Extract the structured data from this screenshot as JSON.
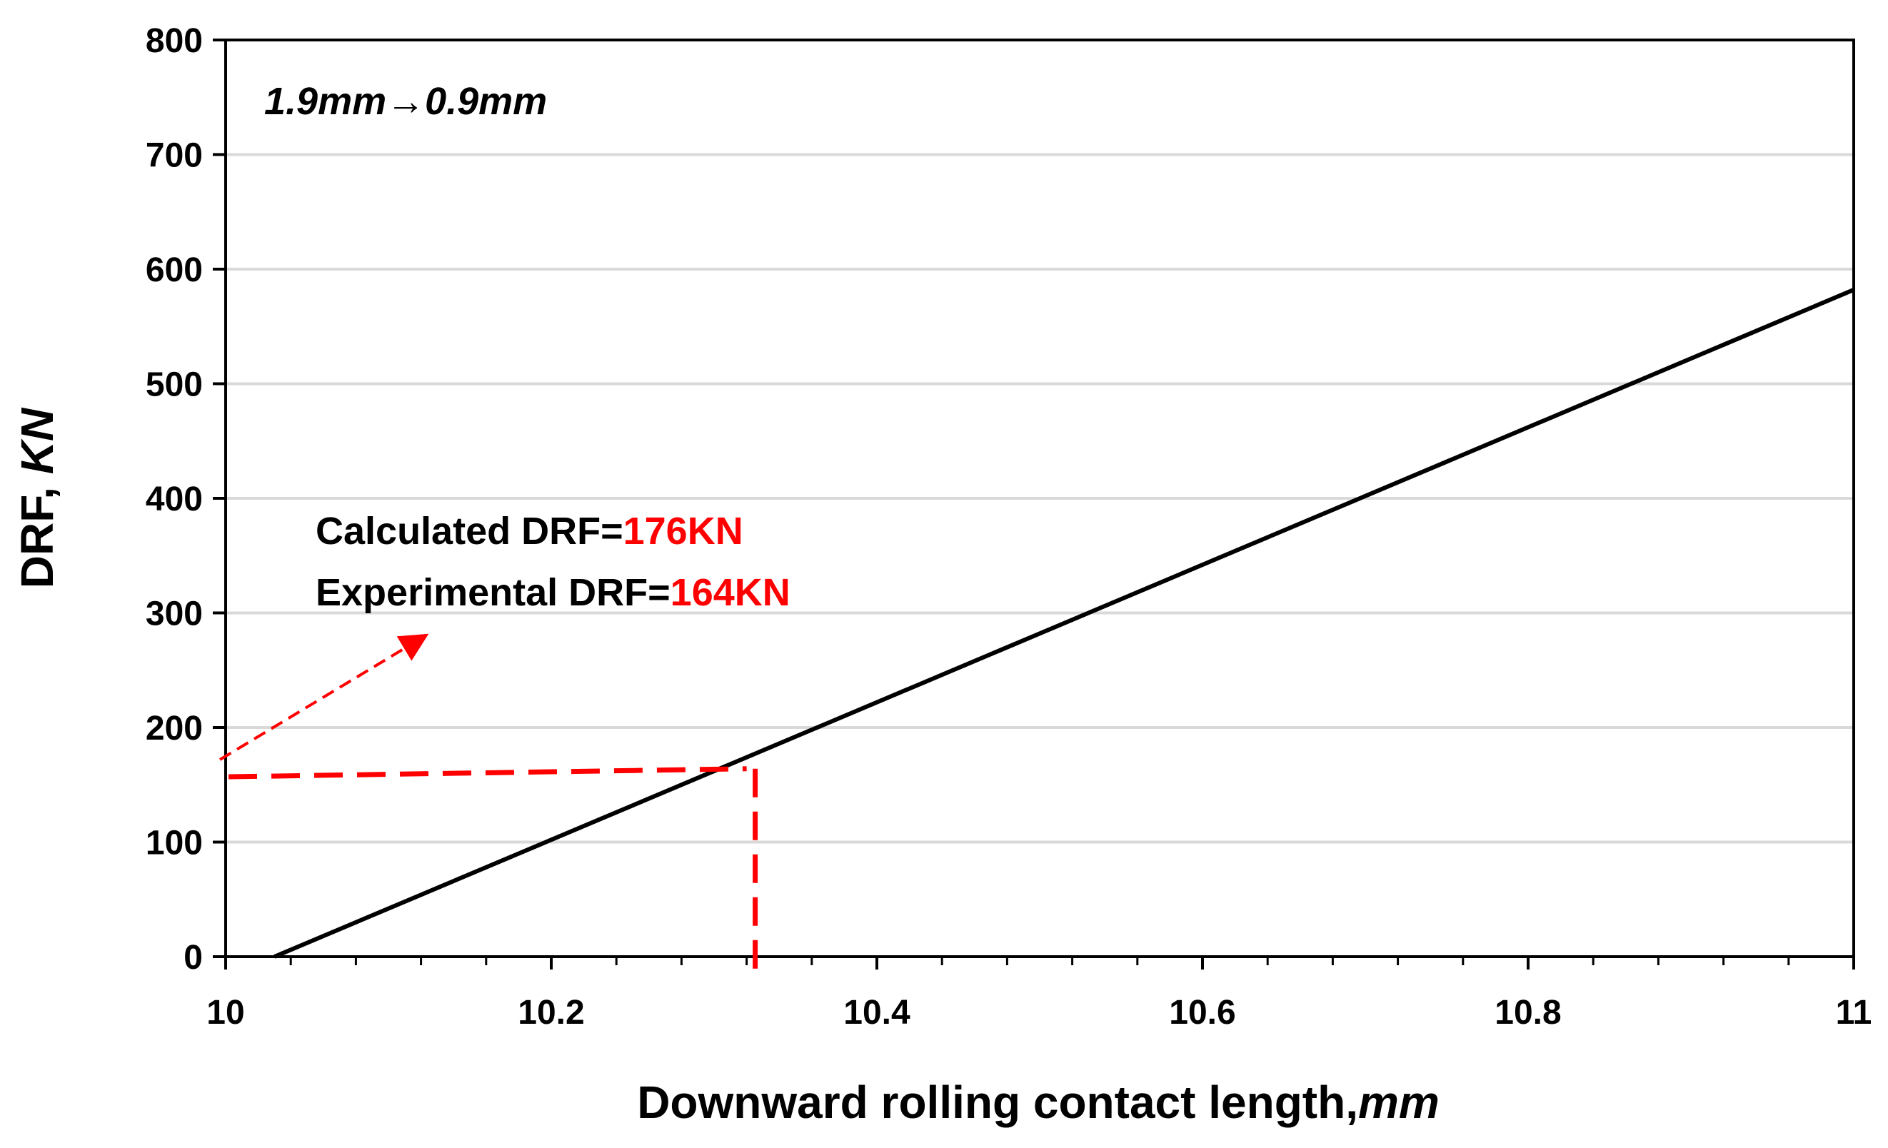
{
  "chart_data": {
    "type": "line",
    "x_axis": {
      "label_main": "Downward rolling contact length,",
      "label_unit": "mm",
      "range": [
        10,
        11
      ],
      "ticks": [
        10,
        10.2,
        10.4,
        10.6,
        10.8,
        11
      ],
      "tick_labels": [
        "10",
        "10.2",
        "10.4",
        "10.6",
        "10.8",
        "11"
      ]
    },
    "y_axis": {
      "label_main": "DRF, ",
      "label_unit": "KN",
      "range": [
        0,
        800
      ],
      "ticks": [
        0,
        100,
        200,
        300,
        400,
        500,
        600,
        700,
        800
      ],
      "tick_labels": [
        "0",
        "100",
        "200",
        "300",
        "400",
        "500",
        "600",
        "700",
        "800"
      ]
    },
    "grid": "horizontal",
    "series": [
      {
        "x": [
          10.03,
          11.0
        ],
        "y": [
          0,
          582
        ],
        "color": "#000000"
      }
    ],
    "reference_point": {
      "x": 10.32,
      "y": 164,
      "color": "#ff0000"
    },
    "annotations": {
      "top_left_label": "1.9mm→0.9mm",
      "calculated_prefix": "Calculated DRF=",
      "calculated_value": "176KN",
      "experimental_prefix": "Experimental DRF=",
      "experimental_value": "164KN",
      "highlight_color": "#ff0000"
    }
  }
}
